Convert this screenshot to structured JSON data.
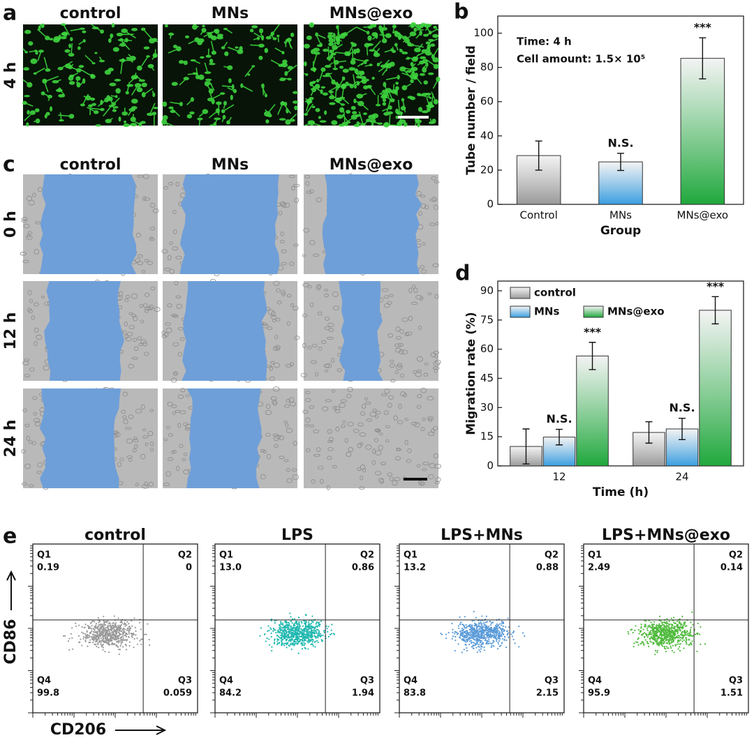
{
  "panel_labels": [
    "a",
    "b",
    "c",
    "d",
    "e"
  ],
  "panel_a": {
    "columns": [
      "control",
      "MNs",
      "MNs@exo"
    ],
    "rows": [
      "4 h"
    ]
  },
  "panel_c": {
    "columns": [
      "control",
      "MNs",
      "MNs@exo"
    ],
    "rows": [
      "0 h",
      "12 h",
      "24 h"
    ]
  },
  "chart_data": [
    {
      "type": "bar",
      "notes": [
        "Time: 4 h",
        "Cell amount: 1.5× 10⁵"
      ],
      "xlabel": "Group",
      "ylabel": "Tube number / field",
      "categories": [
        "Control",
        "MNs",
        "MNs@exo"
      ],
      "values": [
        28.5,
        24.8,
        85.3
      ],
      "errors": [
        8.5,
        5,
        12
      ],
      "colors": [
        "#9a9a9a",
        "#3a9ee0",
        "#1fa83c"
      ],
      "annotations": [
        null,
        "N.S.",
        "***"
      ],
      "ylim": [
        0,
        110
      ],
      "yticks": [
        0,
        20,
        40,
        60,
        80,
        100
      ]
    },
    {
      "type": "bar",
      "xlabel": "Time (h)",
      "ylabel": "Migration rate (%)",
      "categories": [
        "12",
        "24"
      ],
      "series": [
        {
          "name": "control",
          "color": "#9a9a9a",
          "values": [
            10,
            17.2
          ],
          "errors": [
            9,
            5.5
          ]
        },
        {
          "name": "MNs",
          "color": "#3a9ee0",
          "values": [
            14.8,
            19
          ],
          "errors": [
            4,
            5.5
          ],
          "annotations": [
            "N.S.",
            "N.S."
          ]
        },
        {
          "name": "MNs@exo",
          "color": "#1fa83c",
          "values": [
            56.5,
            80
          ],
          "errors": [
            7,
            7
          ],
          "annotations": [
            "***",
            "***"
          ]
        }
      ],
      "legend": "top-left",
      "ylim": [
        0,
        95
      ],
      "yticks": [
        0,
        15,
        30,
        45,
        60,
        75,
        90
      ]
    }
  ],
  "panel_e": {
    "y_label": "CD86",
    "x_label": "CD206",
    "plots": [
      {
        "title": "control",
        "color": "#9a9a9a",
        "quadrants": [
          {
            "name": "Q1",
            "value": "0.19"
          },
          {
            "name": "Q2",
            "value": "0"
          },
          {
            "name": "Q3",
            "value": "0.059"
          },
          {
            "name": "Q4",
            "value": "99.8"
          }
        ]
      },
      {
        "title": "LPS",
        "color": "#1fb8b0",
        "quadrants": [
          {
            "name": "Q1",
            "value": "13.0"
          },
          {
            "name": "Q2",
            "value": "0.86"
          },
          {
            "name": "Q3",
            "value": "1.94"
          },
          {
            "name": "Q4",
            "value": "84.2"
          }
        ]
      },
      {
        "title": "LPS+MNs",
        "color": "#5b9bd9",
        "quadrants": [
          {
            "name": "Q1",
            "value": "13.2"
          },
          {
            "name": "Q2",
            "value": "0.88"
          },
          {
            "name": "Q3",
            "value": "2.15"
          },
          {
            "name": "Q4",
            "value": "83.8"
          }
        ]
      },
      {
        "title": "LPS+MNs@exo",
        "color": "#4fba3c",
        "quadrants": [
          {
            "name": "Q1",
            "value": "2.49"
          },
          {
            "name": "Q2",
            "value": "0.14"
          },
          {
            "name": "Q3",
            "value": "1.51"
          },
          {
            "name": "Q4",
            "value": "95.9"
          }
        ]
      }
    ]
  }
}
